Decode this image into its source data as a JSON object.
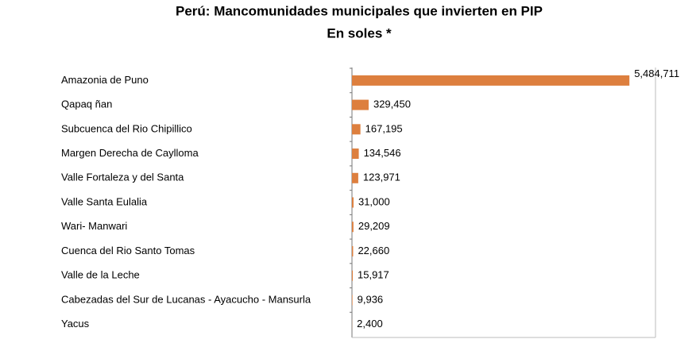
{
  "chart_data": {
    "type": "bar",
    "orientation": "horizontal",
    "title": "Perú: Mancomunidades municipales que invierten en PIP",
    "subtitle": "En soles *",
    "categories": [
      "Amazonia de Puno",
      "Qapaq ñan",
      "Subcuenca del Rio Chipillico",
      "Margen Derecha de Caylloma",
      "Valle Fortaleza y del Santa",
      "Valle Santa Eulalia",
      "Wari- Manwari",
      "Cuenca del Rio Santo Tomas",
      "Valle de la Leche",
      "Cabezadas del Sur de Lucanas - Ayacucho - Mansurla",
      "Yacus"
    ],
    "values": [
      5484711,
      329450,
      167195,
      134546,
      123971,
      31000,
      29209,
      22660,
      15917,
      9936,
      2400
    ],
    "value_labels": [
      "5,484,711",
      "329,450",
      "167,195",
      "134,546",
      "123,971",
      "31,000",
      "29,209",
      "22,660",
      "15,917",
      "9,936",
      "2,400"
    ],
    "color": "#dd7f3e",
    "xlim": [
      0,
      6000000
    ]
  }
}
